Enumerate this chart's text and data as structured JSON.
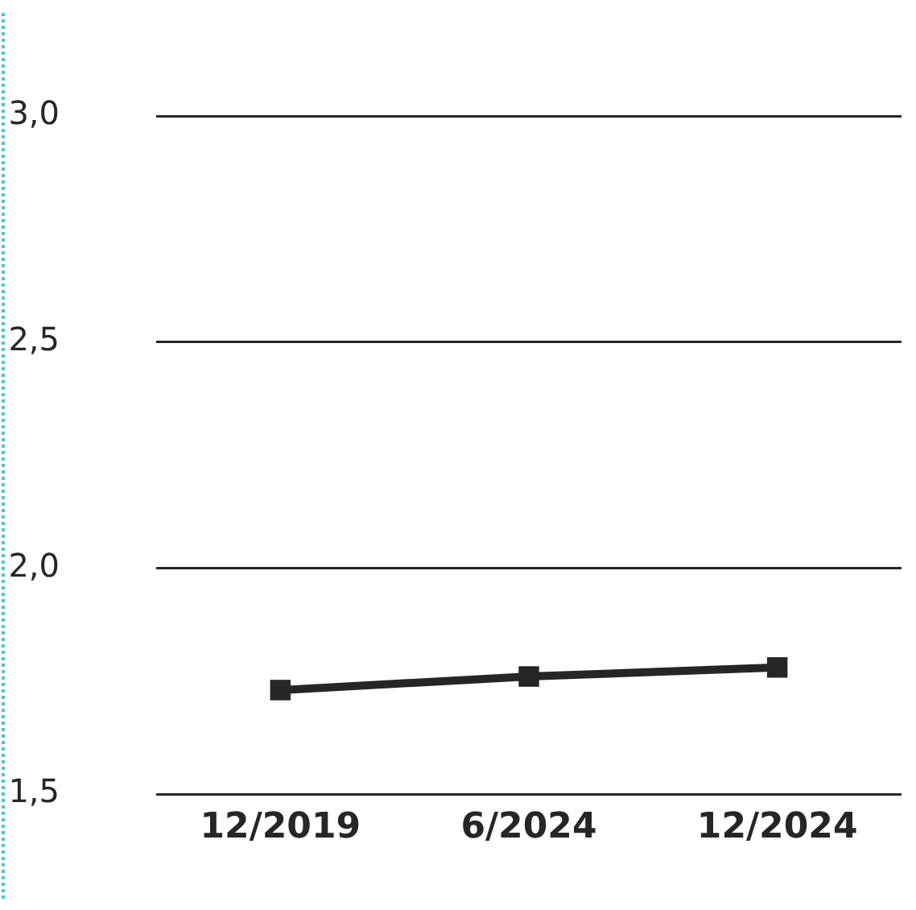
{
  "chart_data": {
    "type": "line",
    "categories": [
      "12/2019",
      "6/2024",
      "12/2024"
    ],
    "series": [
      {
        "color": "#262626",
        "values": [
          1.73,
          1.76,
          1.78
        ]
      }
    ],
    "ylim": [
      1.5,
      3.0
    ],
    "yticks": [
      {
        "value": 1.5,
        "label": "1,5"
      },
      {
        "value": 2.0,
        "label": "2,0"
      },
      {
        "value": 2.5,
        "label": "2,5"
      },
      {
        "value": 3.0,
        "label": "3,0"
      }
    ],
    "grid": "y",
    "legend": false,
    "marker": "square",
    "line_style": "solid"
  }
}
